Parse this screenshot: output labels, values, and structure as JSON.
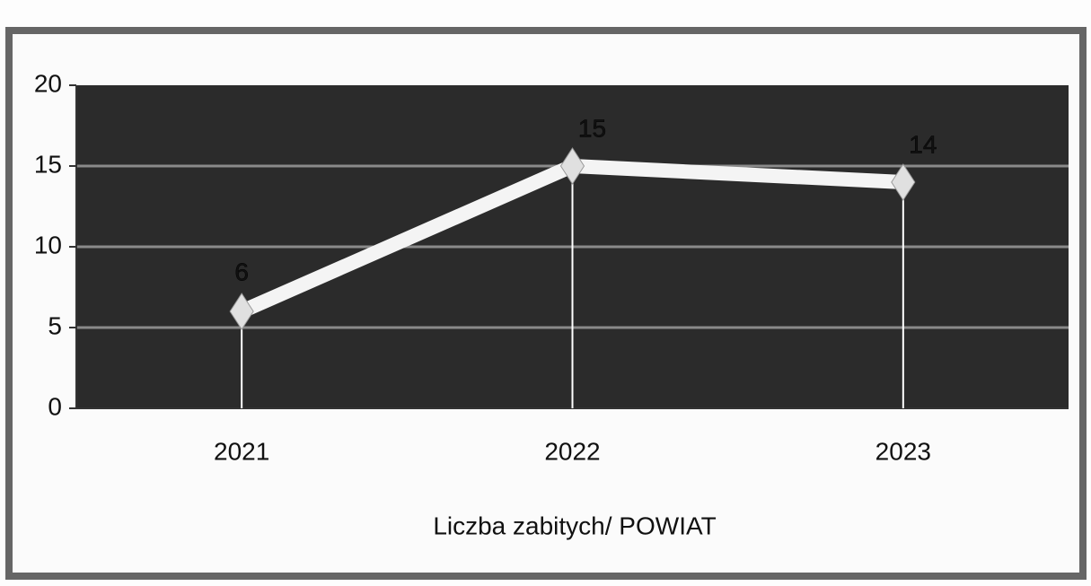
{
  "chart_data": {
    "type": "line",
    "x_label": "Liczba zabitych/ POWIAT",
    "categories": [
      "2021",
      "2022",
      "2023"
    ],
    "series": [
      {
        "color": "#f4f4f4",
        "values": [
          6,
          15,
          14
        ]
      }
    ],
    "ylim": [
      0,
      20
    ],
    "yticks": [
      0,
      5,
      10,
      15,
      20
    ],
    "grid": true,
    "plot_background": "#2b2b2b",
    "drop_lines": true,
    "data_labels": true
  }
}
